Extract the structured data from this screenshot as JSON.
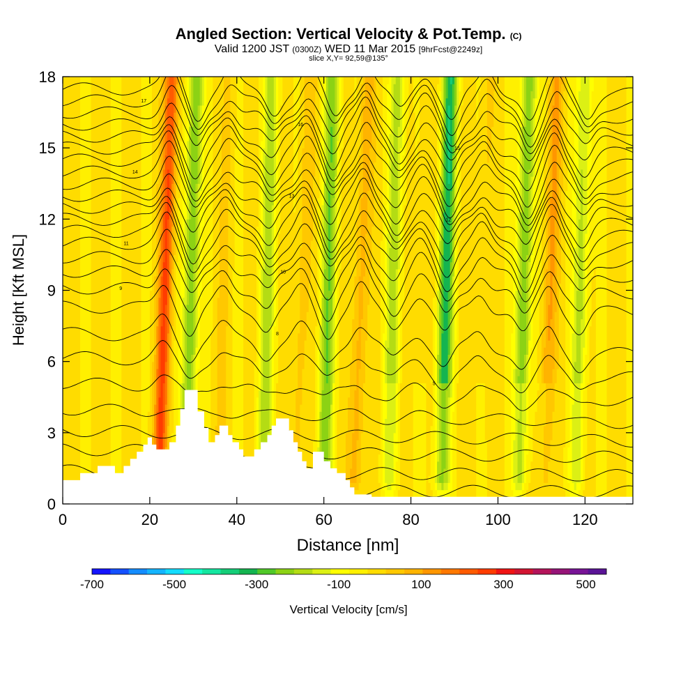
{
  "header": {
    "title_main": "Angled Section: Vertical Velocity & Pot.Temp.",
    "title_unit": "(C)",
    "valid_a": "Valid 1200 JST",
    "valid_b": "(0300Z)",
    "valid_c": "WED 11 Mar 2015",
    "valid_d": "[9hrFcst@2249z]",
    "slice": "slice X,Y= 92,59@135°"
  },
  "chart_data": {
    "type": "heatmap",
    "title": "Angled Section: Vertical Velocity & Pot.Temp. (C)",
    "xlabel": "Distance [nm]",
    "ylabel": "Height [Kft MSL]",
    "xlim": [
      0,
      131
    ],
    "ylim": [
      0,
      18
    ],
    "xticks": [
      0,
      20,
      40,
      60,
      80,
      100,
      120
    ],
    "yticks": [
      0,
      3,
      6,
      9,
      12,
      15,
      18
    ],
    "grid": false,
    "colorbar": {
      "label": "Vertical Velocity [cm/s]",
      "tick_labels": [
        "-700",
        "-500",
        "-300",
        "-100",
        "100",
        "300",
        "500"
      ],
      "tick_values": [
        -700,
        -500,
        -300,
        -100,
        100,
        300,
        500
      ],
      "range": [
        -700,
        550
      ],
      "step": 50,
      "colors": [
        "#1414ff",
        "#1450ff",
        "#148cff",
        "#14b4ff",
        "#14dcff",
        "#14ffc8",
        "#14e6a0",
        "#14cd78",
        "#14b450",
        "#50c828",
        "#8cd214",
        "#b4dc14",
        "#dcf014",
        "#ffff00",
        "#fff000",
        "#ffdc00",
        "#ffc800",
        "#ffb400",
        "#ff9600",
        "#ff7800",
        "#ff5a00",
        "#ff3c00",
        "#f01414",
        "#d21432",
        "#b4145a",
        "#961478",
        "#781496",
        "#5a1496"
      ]
    },
    "vertical_velocity_features": [
      {
        "x": 23.5,
        "kind": "updraft",
        "value": 350
      },
      {
        "x": 29.5,
        "kind": "downdraft",
        "value": -200
      },
      {
        "x": 37,
        "kind": "updraft",
        "value": 100
      },
      {
        "x": 47,
        "kind": "downdraft",
        "value": -120
      },
      {
        "x": 55,
        "kind": "updraft",
        "value": 130
      },
      {
        "x": 61,
        "kind": "downdraft",
        "value": -180
      },
      {
        "x": 68.5,
        "kind": "updraft",
        "value": 180
      },
      {
        "x": 76,
        "kind": "downdraft",
        "value": -120
      },
      {
        "x": 82,
        "kind": "updraft",
        "value": 90
      },
      {
        "x": 88,
        "kind": "downdraft",
        "value": -280
      },
      {
        "x": 96,
        "kind": "updraft",
        "value": 110
      },
      {
        "x": 106,
        "kind": "downdraft",
        "value": -200
      },
      {
        "x": 112,
        "kind": "updraft",
        "value": 200
      },
      {
        "x": 119,
        "kind": "downdraft",
        "value": -120
      }
    ],
    "terrain": [
      [
        0,
        1
      ],
      [
        4,
        1
      ],
      [
        4,
        1.3
      ],
      [
        8,
        1.3
      ],
      [
        8,
        1.6
      ],
      [
        12,
        1.6
      ],
      [
        12,
        1.3
      ],
      [
        14,
        1.3
      ],
      [
        14,
        1.6
      ],
      [
        15.5,
        1.6
      ],
      [
        15.5,
        1.9
      ],
      [
        17,
        1.9
      ],
      [
        17,
        2.2
      ],
      [
        18.5,
        2.2
      ],
      [
        18.5,
        2.5
      ],
      [
        19.5,
        2.5
      ],
      [
        19.5,
        2.8
      ],
      [
        20.5,
        2.8
      ],
      [
        20.5,
        2.5
      ],
      [
        21.5,
        2.5
      ],
      [
        21.5,
        2.3
      ],
      [
        24.5,
        2.3
      ],
      [
        24.5,
        2.6
      ],
      [
        26,
        2.6
      ],
      [
        26,
        3.3
      ],
      [
        27,
        3.3
      ],
      [
        27,
        4
      ],
      [
        28,
        4
      ],
      [
        28,
        4.8
      ],
      [
        31,
        4.8
      ],
      [
        31,
        3.9
      ],
      [
        32.5,
        3.9
      ],
      [
        32.5,
        3.2
      ],
      [
        33.5,
        3.2
      ],
      [
        33.5,
        2.6
      ],
      [
        35,
        2.6
      ],
      [
        35,
        2.9
      ],
      [
        36,
        2.9
      ],
      [
        36,
        3.3
      ],
      [
        38,
        3.3
      ],
      [
        38,
        2.9
      ],
      [
        39,
        2.9
      ],
      [
        39,
        2.6
      ],
      [
        40.5,
        2.6
      ],
      [
        40.5,
        2.3
      ],
      [
        41.5,
        2.3
      ],
      [
        41.5,
        2
      ],
      [
        44,
        2
      ],
      [
        44,
        2.3
      ],
      [
        45.5,
        2.3
      ],
      [
        45.5,
        2.6
      ],
      [
        47,
        2.6
      ],
      [
        47,
        2.9
      ],
      [
        48,
        2.9
      ],
      [
        48,
        3.3
      ],
      [
        49,
        3.3
      ],
      [
        49,
        3.6
      ],
      [
        52,
        3.6
      ],
      [
        52,
        3.1
      ],
      [
        53,
        3.1
      ],
      [
        53,
        2.6
      ],
      [
        54,
        2.6
      ],
      [
        54,
        2.2
      ],
      [
        55,
        2.2
      ],
      [
        55,
        1.8
      ],
      [
        56,
        1.8
      ],
      [
        56,
        1.5
      ],
      [
        57.5,
        1.5
      ],
      [
        57.5,
        2.2
      ],
      [
        60,
        2.2
      ],
      [
        60,
        1.8
      ],
      [
        61.5,
        1.8
      ],
      [
        61.5,
        1.5
      ],
      [
        63,
        1.5
      ],
      [
        63,
        1.3
      ],
      [
        65,
        1.3
      ],
      [
        65,
        1
      ],
      [
        66,
        1
      ],
      [
        66,
        0.7
      ],
      [
        67,
        0.7
      ],
      [
        67,
        0.4
      ],
      [
        71,
        0.4
      ],
      [
        71,
        0.3
      ],
      [
        131,
        0.3
      ]
    ],
    "theta_contours": [
      {
        "base": 0.6,
        "label": ""
      },
      {
        "base": 1.4,
        "label": ""
      },
      {
        "base": 2.3,
        "label": ""
      },
      {
        "base": 3.1,
        "label": ""
      },
      {
        "base": 4.0,
        "label": ""
      },
      {
        "base": 5.1,
        "label": "5"
      },
      {
        "base": 6.2,
        "label": ""
      },
      {
        "base": 7.2,
        "label": "8"
      },
      {
        "base": 8.3,
        "label": ""
      },
      {
        "base": 9.1,
        "label": "9"
      },
      {
        "base": 9.8,
        "label": "10"
      },
      {
        "base": 10.4,
        "label": ""
      },
      {
        "base": 11.0,
        "label": "11"
      },
      {
        "base": 11.5,
        "label": ""
      },
      {
        "base": 12.0,
        "label": "12"
      },
      {
        "base": 12.5,
        "label": ""
      },
      {
        "base": 13.0,
        "label": "13"
      },
      {
        "base": 13.5,
        "label": ""
      },
      {
        "base": 14.0,
        "label": "14"
      },
      {
        "base": 14.5,
        "label": ""
      },
      {
        "base": 15.0,
        "label": "15"
      },
      {
        "base": 15.5,
        "label": ""
      },
      {
        "base": 16.0,
        "label": "16"
      },
      {
        "base": 16.5,
        "label": ""
      },
      {
        "base": 17.0,
        "label": "17"
      },
      {
        "base": 17.5,
        "label": ""
      }
    ]
  }
}
